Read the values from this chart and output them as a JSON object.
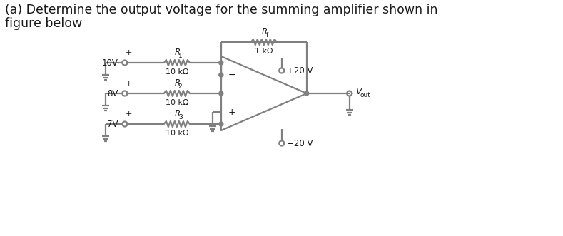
{
  "title_line1": "(a) Determine the output voltage for the summing amplifier shown in",
  "title_line2": "figure below",
  "title_fontsize": 12.5,
  "bg_color": "#ffffff",
  "circuit_color": "#808080",
  "text_color": "#1a1a1a",
  "voltages": [
    "10V",
    "8V",
    "7V"
  ],
  "resistors_input": [
    "R",
    "R",
    "R"
  ],
  "resistors_input_sub": [
    "1",
    "2",
    "3"
  ],
  "resistor_values_input": [
    "10 kΩ",
    "10 kΩ",
    "10 kΩ"
  ],
  "resistor_feedback_label": "R",
  "resistor_feedback_sub": "f",
  "resistor_feedback_value": "1 kΩ",
  "supply_pos": "+20 V",
  "supply_neg": "−20 V",
  "plus_labels": [
    "+",
    "+",
    "+"
  ],
  "opamp_minus": "−",
  "opamp_plus": "+"
}
